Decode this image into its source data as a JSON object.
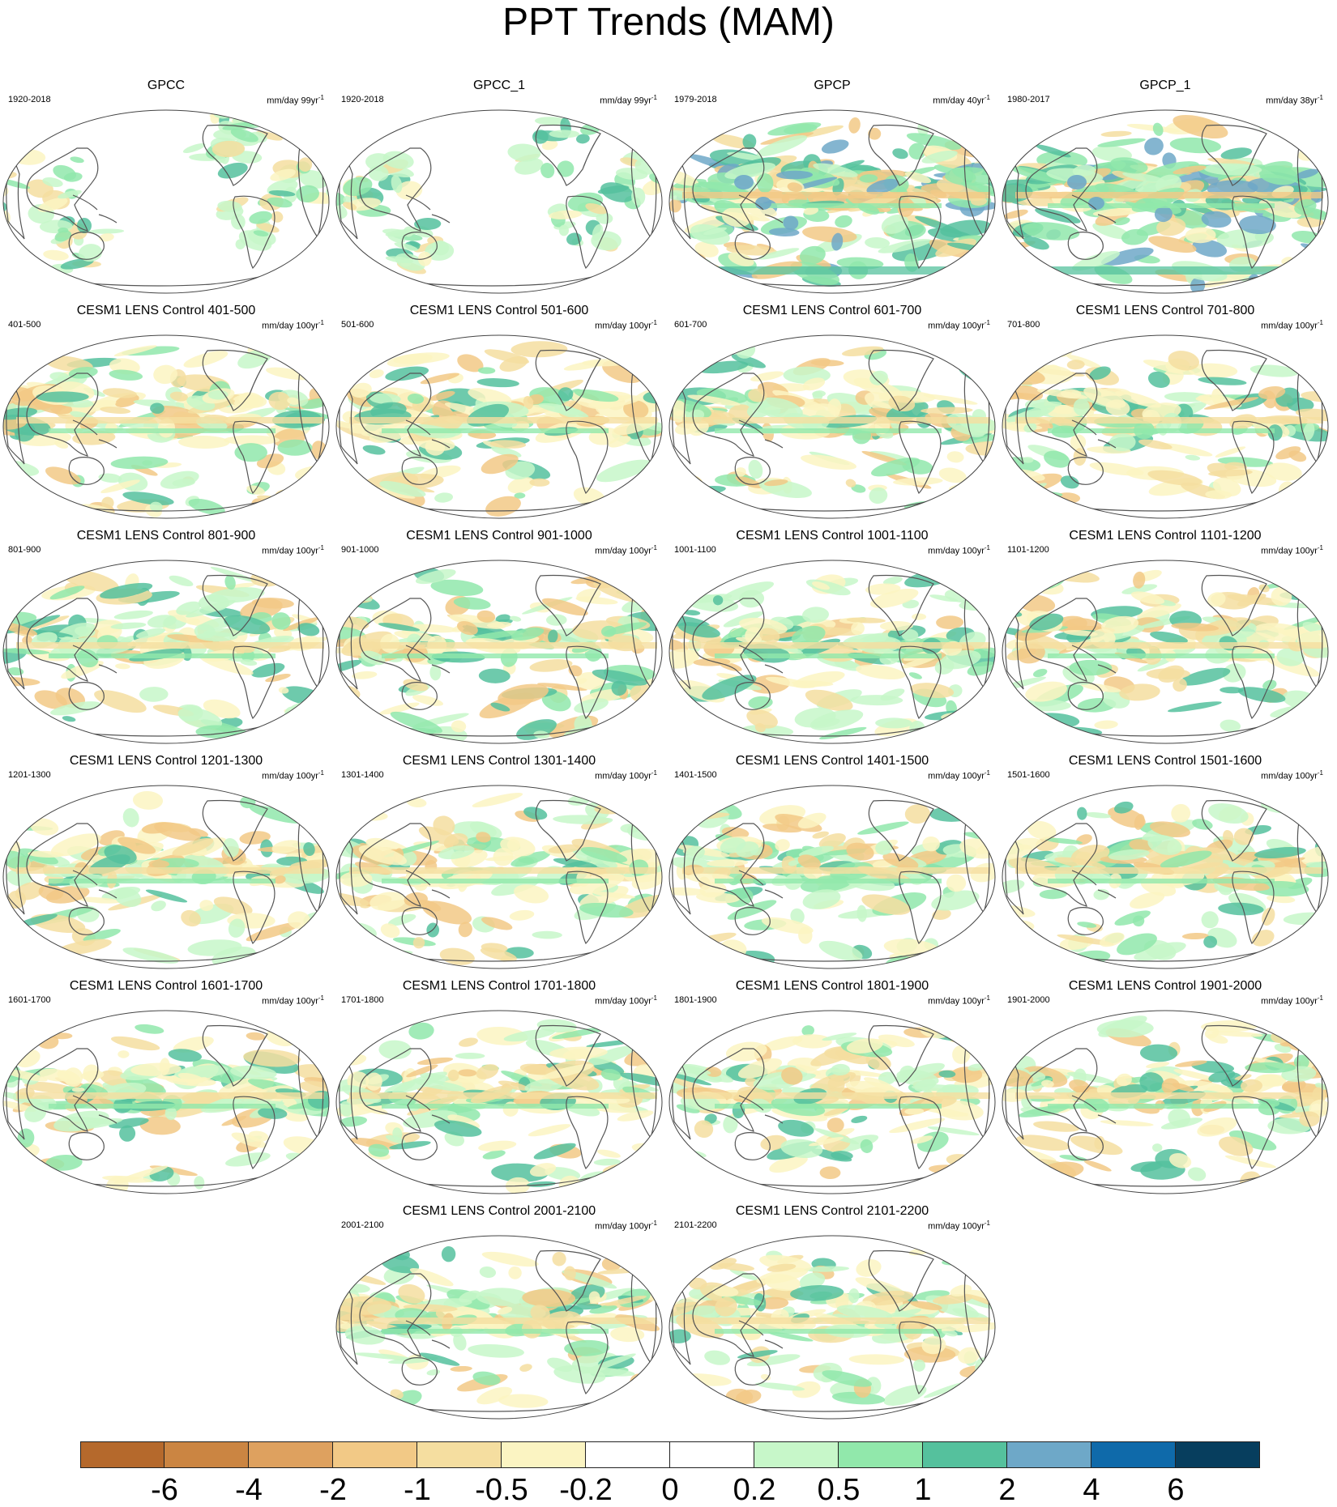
{
  "title": "PPT Trends (MAM)",
  "panels": [
    {
      "title": "GPCC",
      "left": "1920-2018",
      "unit": "mm/day 99yr",
      "pattern": "obs_sparse"
    },
    {
      "title": "GPCC_1",
      "left": "1920-2018",
      "unit": "mm/day 99yr",
      "pattern": "obs_sparse"
    },
    {
      "title": "GPCP",
      "left": "1979-2018",
      "unit": "mm/day 40yr",
      "pattern": "obs_dense"
    },
    {
      "title": "GPCP_1",
      "left": "1980-2017",
      "unit": "mm/day 38yr",
      "pattern": "obs_dense"
    },
    {
      "title": "CESM1 LENS Control 401-500",
      "left": "401-500",
      "unit": "mm/day 100yr",
      "pattern": "model"
    },
    {
      "title": "CESM1 LENS Control 501-600",
      "left": "501-600",
      "unit": "mm/day 100yr",
      "pattern": "model"
    },
    {
      "title": "CESM1 LENS Control 601-700",
      "left": "601-700",
      "unit": "mm/day 100yr",
      "pattern": "model"
    },
    {
      "title": "CESM1 LENS Control 701-800",
      "left": "701-800",
      "unit": "mm/day 100yr",
      "pattern": "model"
    },
    {
      "title": "CESM1 LENS Control 801-900",
      "left": "801-900",
      "unit": "mm/day 100yr",
      "pattern": "model"
    },
    {
      "title": "CESM1 LENS Control 901-1000",
      "left": "901-1000",
      "unit": "mm/day 100yr",
      "pattern": "model"
    },
    {
      "title": "CESM1 LENS Control 1001-1100",
      "left": "1001-1100",
      "unit": "mm/day 100yr",
      "pattern": "model"
    },
    {
      "title": "CESM1 LENS Control 1101-1200",
      "left": "1101-1200",
      "unit": "mm/day 100yr",
      "pattern": "model"
    },
    {
      "title": "CESM1 LENS Control 1201-1300",
      "left": "1201-1300",
      "unit": "mm/day 100yr",
      "pattern": "model"
    },
    {
      "title": "CESM1 LENS Control 1301-1400",
      "left": "1301-1400",
      "unit": "mm/day 100yr",
      "pattern": "model"
    },
    {
      "title": "CESM1 LENS Control 1401-1500",
      "left": "1401-1500",
      "unit": "mm/day 100yr",
      "pattern": "model"
    },
    {
      "title": "CESM1 LENS Control 1501-1600",
      "left": "1501-1600",
      "unit": "mm/day 100yr",
      "pattern": "model"
    },
    {
      "title": "CESM1 LENS Control 1601-1700",
      "left": "1601-1700",
      "unit": "mm/day 100yr",
      "pattern": "model"
    },
    {
      "title": "CESM1 LENS Control 1701-1800",
      "left": "1701-1800",
      "unit": "mm/day 100yr",
      "pattern": "model"
    },
    {
      "title": "CESM1 LENS Control 1801-1900",
      "left": "1801-1900",
      "unit": "mm/day 100yr",
      "pattern": "model"
    },
    {
      "title": "CESM1 LENS Control 1901-2000",
      "left": "1901-2000",
      "unit": "mm/day 100yr",
      "pattern": "model"
    },
    {
      "title": "CESM1 LENS Control 2001-2100",
      "left": "2001-2100",
      "unit": "mm/day 100yr",
      "pattern": "model"
    },
    {
      "title": "CESM1 LENS Control 2101-2200",
      "left": "2101-2200",
      "unit": "mm/day 100yr",
      "pattern": "model"
    }
  ],
  "unit_superscript": "-1",
  "colorbar": {
    "colors": [
      "#b5692c",
      "#cb8542",
      "#dea15f",
      "#f2c986",
      "#f5dea0",
      "#fbf4c2",
      "#ffffff",
      "#ffffff",
      "#c7f7c9",
      "#91e8ab",
      "#55c19d",
      "#6ea8c8",
      "#0f6aaa",
      "#073e5e"
    ],
    "labels": [
      "-6",
      "-4",
      "-2",
      "-1",
      "-0.5",
      "-0.2",
      "0",
      "0.2",
      "0.5",
      "1",
      "2",
      "4",
      "6"
    ]
  },
  "colors": {
    "coastline": "#555555",
    "frame": "#444444"
  }
}
